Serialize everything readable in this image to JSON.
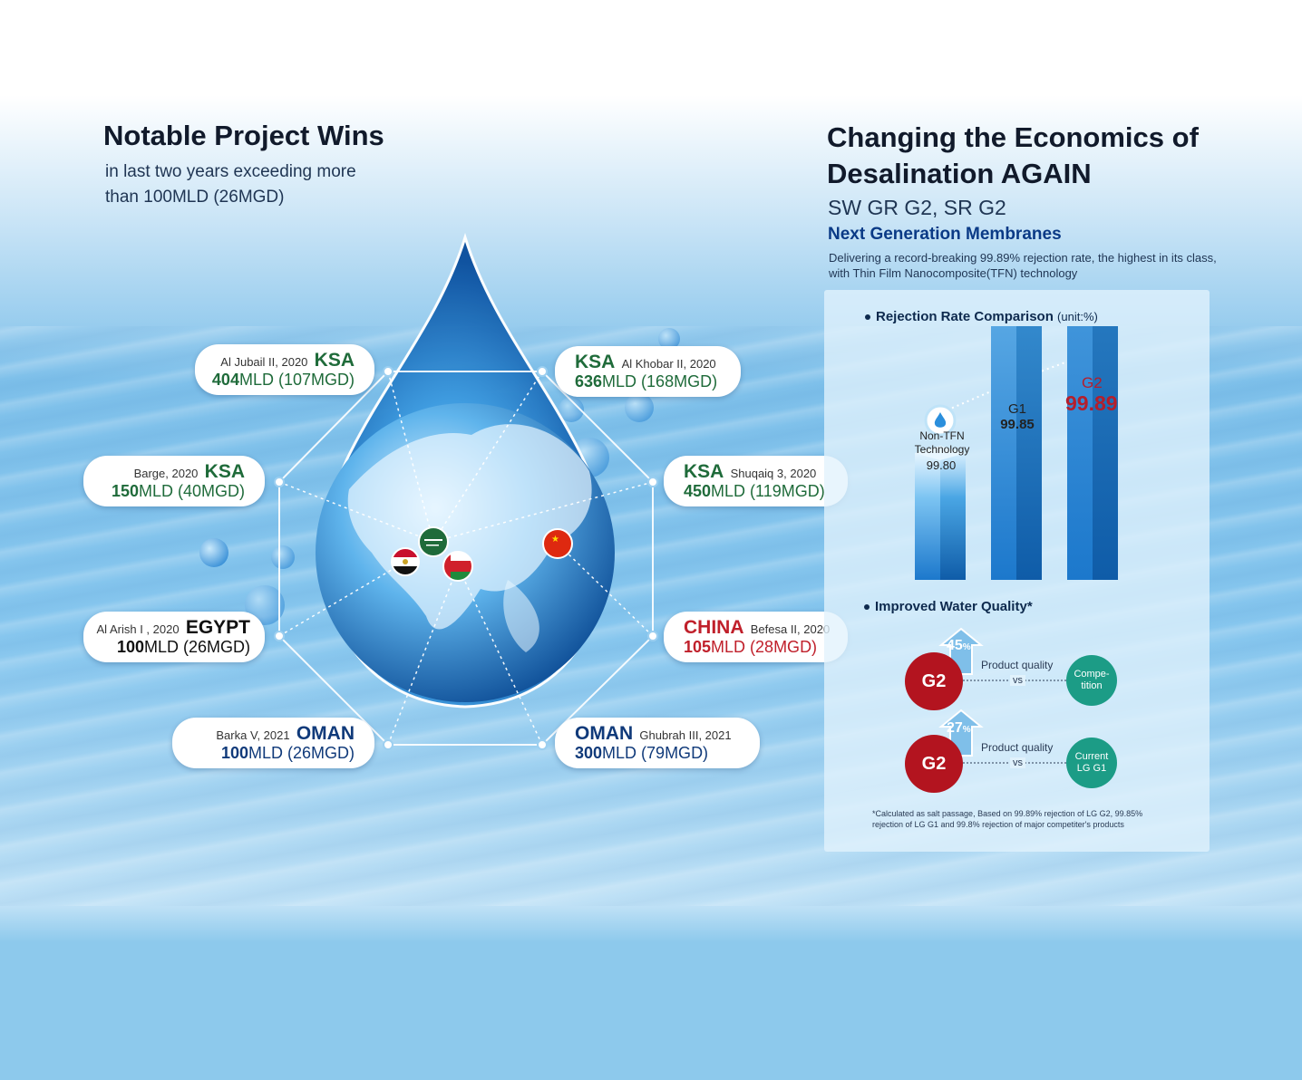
{
  "left": {
    "title": "Notable Project Wins",
    "subtitle_line1": "in last two years exceeding more",
    "subtitle_line2": "than 100MLD (26MGD)"
  },
  "right": {
    "title_line1": "Changing the Economics of",
    "title_line2": "Desalination AGAIN",
    "product": "SW GR G2, SR G2",
    "tagline": "Next Generation Membranes",
    "desc_line1": "Delivering a record-breaking 99.89% rejection rate, the highest in its class,",
    "desc_line2": "with Thin Film Nanocomposite(TFN) technology"
  },
  "projects": [
    {
      "id": "jubail",
      "country": "KSA",
      "plant": "Al Jubail II, 2020",
      "capacity": "404",
      "unit": "MLD (107MGD)",
      "color": "#1f6b3a"
    },
    {
      "id": "khobar",
      "country": "KSA",
      "plant": "Al Khobar II, 2020",
      "capacity": "636",
      "unit": "MLD (168MGD)",
      "color": "#1f6b3a"
    },
    {
      "id": "barge",
      "country": "KSA",
      "plant": "Barge, 2020",
      "capacity": "150",
      "unit": "MLD (40MGD)",
      "color": "#1f6b3a"
    },
    {
      "id": "shuqaiq",
      "country": "KSA",
      "plant": "Shuqaiq 3, 2020",
      "capacity": "450",
      "unit": "MLD (119MGD)",
      "color": "#1f6b3a"
    },
    {
      "id": "arish",
      "country": "EGYPT",
      "plant": "Al Arish I , 2020",
      "capacity": "100",
      "unit": "MLD (26MGD)",
      "color": "#111111"
    },
    {
      "id": "befesa",
      "country": "CHINA",
      "plant": "Befesa II, 2020",
      "capacity": "105",
      "unit": "MLD (28MGD)",
      "color": "#c0202b"
    },
    {
      "id": "barka",
      "country": "OMAN",
      "plant": "Barka V, 2021",
      "capacity": "100",
      "unit": "MLD (26MGD)",
      "color": "#103a7a"
    },
    {
      "id": "ghubrah",
      "country": "OMAN",
      "plant": "Ghubrah III, 2021",
      "capacity": "300",
      "unit": "MLD (79MGD)",
      "color": "#103a7a"
    }
  ],
  "rejection": {
    "title": "Rejection Rate Comparison",
    "unit": "(unit:%)"
  },
  "chart_data": {
    "type": "bar",
    "title": "Rejection Rate Comparison",
    "ylabel": "(unit:%)",
    "categories": [
      "Non-TFN Technology",
      "G1",
      "G2"
    ],
    "values": [
      99.8,
      99.85,
      99.89
    ],
    "labels": [
      "99.80",
      "99.85",
      "99.89"
    ],
    "ylim": [
      99.7,
      99.95
    ]
  },
  "bar_labels": {
    "nontfn_line1": "Non-TFN",
    "nontfn_line2": "Technology",
    "g1": "G1",
    "g2": "G2"
  },
  "quality": {
    "title": "Improved Water Quality*",
    "rows": [
      {
        "pct": "45",
        "pct_sign": "%",
        "left": "G2",
        "label": "Product quality",
        "vs": "vs",
        "right_line1": "Compe-",
        "right_line2": "tition"
      },
      {
        "pct": "27",
        "pct_sign": "%",
        "left": "G2",
        "label": "Product quality",
        "vs": "vs",
        "right_line1": "Current",
        "right_line2": "LG G1"
      }
    ],
    "footnote_line1": "*Calculated as salt passage, Based on 99.89% rejection of LG G2, 99.85%",
    "footnote_line2": "rejection of  LG G1 and 99.8% rejection of major competiter's products"
  },
  "colors": {
    "ksa": "#1f6b3a",
    "china": "#c0202b",
    "oman": "#103a7a",
    "g2": "#b3141f",
    "teal": "#1c9c86",
    "drop": "#1e78c8"
  }
}
